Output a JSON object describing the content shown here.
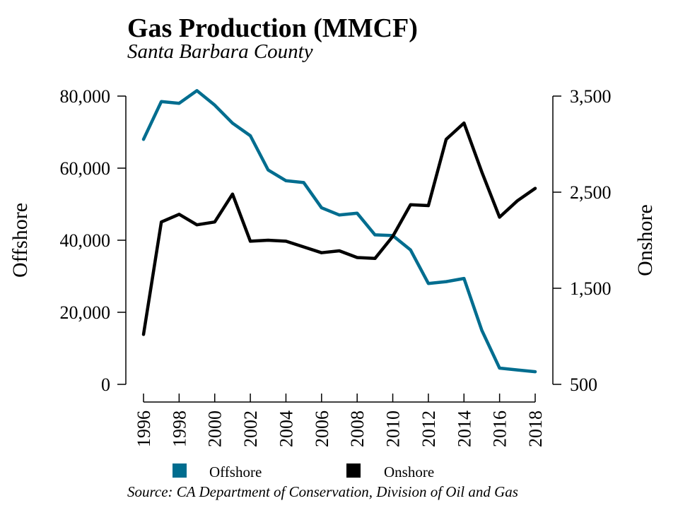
{
  "colors": {
    "offshore": "#006d8f",
    "onshore": "#000000"
  },
  "chart_data": {
    "type": "line",
    "title": "Gas Production (MMCF)",
    "subtitle": "Santa Barbara County",
    "source": "Source: CA Department of Conservation, Division of Oil and Gas",
    "x": [
      1996,
      1997,
      1998,
      1999,
      2000,
      2001,
      2002,
      2003,
      2004,
      2005,
      2006,
      2007,
      2008,
      2009,
      2010,
      2011,
      2012,
      2013,
      2014,
      2015,
      2016,
      2017,
      2018
    ],
    "x_tick_labels": [
      "1996",
      "1998",
      "2000",
      "2002",
      "2004",
      "2006",
      "2008",
      "2010",
      "2012",
      "2014",
      "2016",
      "2018"
    ],
    "y_left": {
      "label": "Offshore",
      "range": [
        0,
        80000
      ],
      "ticks": [
        0,
        20000,
        40000,
        60000,
        80000
      ],
      "tick_labels": [
        "0",
        "20,000",
        "40,000",
        "60,000",
        "80,000"
      ]
    },
    "y_right": {
      "label": "Onshore",
      "range": [
        500,
        3500
      ],
      "ticks": [
        500,
        1500,
        2500,
        3500
      ],
      "tick_labels": [
        "500",
        "1,500",
        "2,500",
        "3,500"
      ]
    },
    "grid": false,
    "legend": {
      "placement": "bottom",
      "items": [
        "Offshore",
        "Onshore"
      ]
    },
    "series": [
      {
        "name": "Offshore",
        "axis": "left",
        "color": "#006d8f",
        "values": [
          68000,
          78500,
          78000,
          81500,
          77500,
          72500,
          69000,
          59500,
          56500,
          56000,
          49000,
          47000,
          47500,
          41500,
          41300,
          37300,
          28000,
          28500,
          29400,
          15000,
          4500,
          4000,
          3500
        ]
      },
      {
        "name": "Onshore",
        "axis": "right",
        "color": "#000000",
        "values": [
          1020,
          2190,
          2270,
          2160,
          2190,
          2480,
          1990,
          2000,
          1990,
          1930,
          1870,
          1890,
          1820,
          1810,
          2040,
          2370,
          2360,
          3050,
          3220,
          2710,
          2240,
          2410,
          2540
        ]
      }
    ]
  }
}
